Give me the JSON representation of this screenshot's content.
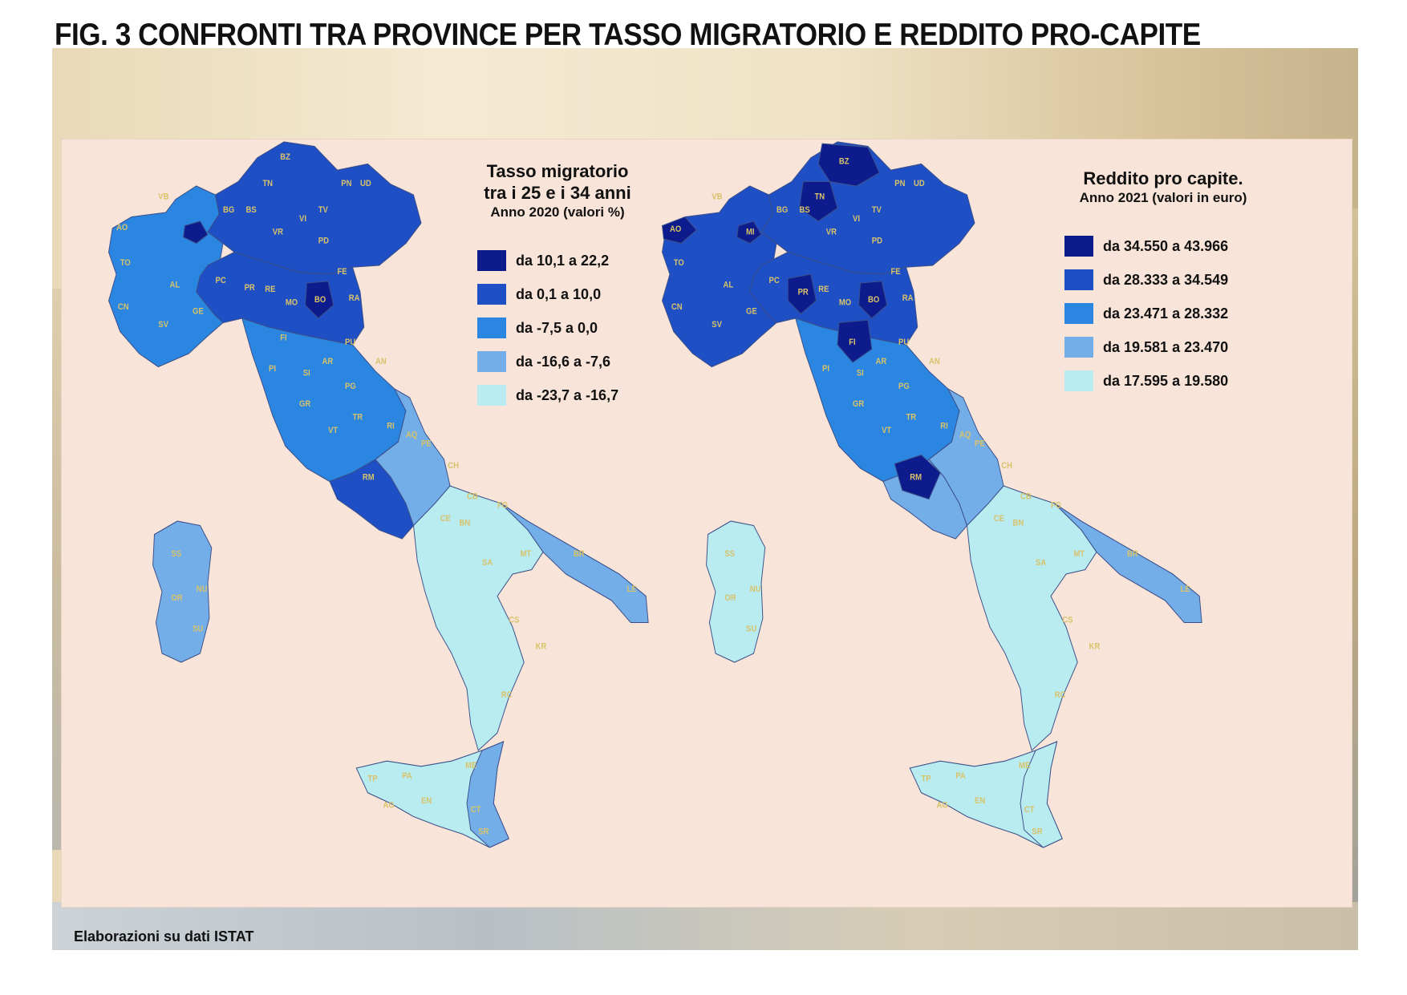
{
  "figure": {
    "title": "FIG. 3 CONFRONTI TRA PROVINCE PER TASSO MIGRATORIO E REDDITO PRO-CAPITE"
  },
  "maps": [
    {
      "id": "migration",
      "title_line1": "Tasso migratorio",
      "title_line2": "tra i 25 e i 34 anni",
      "subtitle": "Anno 2020 (valori %)",
      "legend": [
        {
          "label": "da 10,1 a 22,2",
          "color": "#0d1b8c"
        },
        {
          "label": "da 0,1 a 10,0",
          "color": "#1f4fc4"
        },
        {
          "label": "da -7,5 a 0,0",
          "color": "#2a86e0"
        },
        {
          "label": "da -16,6 a -7,6",
          "color": "#74aee8"
        },
        {
          "label": "da -23,7 a -16,7",
          "color": "#b9ecf0"
        }
      ],
      "regions": {
        "north_west": "#2a86e0",
        "north_east": "#1f4fc4",
        "emilia_romagna": "#1f4fc4",
        "tuscany_umbria": "#2a86e0",
        "lazio_coast": "#1f4fc4",
        "abruzzo_molise": "#74aee8",
        "south": "#b9ecf0",
        "apulia_east": "#74aee8",
        "calabria": "#b9ecf0",
        "sardinia": "#74aee8",
        "sicily": "#b9ecf0",
        "sicily_east": "#74aee8"
      },
      "highlighted_provinces": [
        {
          "code": "MI",
          "color": "#0d1b8c"
        },
        {
          "code": "BO",
          "color": "#0d1b8c"
        }
      ]
    },
    {
      "id": "income",
      "title_line1": "Reddito pro capite.",
      "subtitle": "Anno 2021 (valori in euro)",
      "legend": [
        {
          "label": "da 34.550 a 43.966",
          "color": "#0d1b8c"
        },
        {
          "label": "da 28.333 a 34.549",
          "color": "#1f4fc4"
        },
        {
          "label": "da 23.471 a 28.332",
          "color": "#2a86e0"
        },
        {
          "label": "da 19.581 a 23.470",
          "color": "#74aee8"
        },
        {
          "label": "da 17.595 a 19.580",
          "color": "#b9ecf0"
        }
      ],
      "regions": {
        "north_west": "#1f4fc4",
        "north_east": "#1f4fc4",
        "emilia_romagna": "#1f4fc4",
        "tuscany_umbria": "#2a86e0",
        "lazio_coast": "#74aee8",
        "abruzzo_molise": "#74aee8",
        "south": "#b9ecf0",
        "apulia_east": "#74aee8",
        "calabria": "#b9ecf0",
        "sardinia": "#b9ecf0",
        "sicily": "#b9ecf0",
        "sicily_east": "#b9ecf0"
      },
      "highlighted_provinces": [
        {
          "code": "BZ",
          "color": "#0d1b8c"
        },
        {
          "code": "TN",
          "color": "#0d1b8c"
        },
        {
          "code": "AO",
          "color": "#0d1b8c"
        },
        {
          "code": "MI",
          "color": "#0d1b8c"
        },
        {
          "code": "BO",
          "color": "#0d1b8c"
        },
        {
          "code": "PR",
          "color": "#0d1b8c"
        },
        {
          "code": "FI",
          "color": "#0d1b8c"
        },
        {
          "code": "RM",
          "color": "#0d1b8c"
        }
      ]
    }
  ],
  "footer": "Elaborazioni su dati ISTAT"
}
